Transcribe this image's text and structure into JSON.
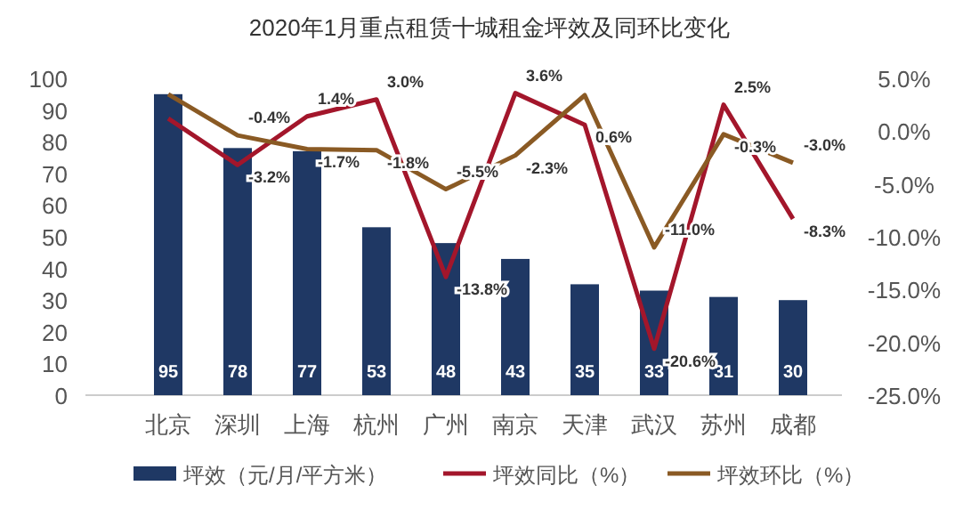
{
  "chart_data": {
    "type": "bar",
    "title": "2020年1月重点租赁十城租金坪效及同环比变化",
    "categories": [
      "北京",
      "深圳",
      "上海",
      "杭州",
      "广州",
      "南京",
      "天津",
      "武汉",
      "苏州",
      "成都"
    ],
    "series": [
      {
        "name": "坪效（元/月/平方米）",
        "color": "#1f3864",
        "values": [
          95,
          78,
          77,
          53,
          48,
          43,
          35,
          33,
          31,
          30
        ],
        "value_labels": [
          "95",
          "78",
          "77",
          "53",
          "48",
          "43",
          "35",
          "33",
          "31",
          "30"
        ]
      },
      {
        "name": "坪效同比（%）",
        "type": "line",
        "axis": "y2",
        "color": "#a3162b",
        "values": [
          1.2,
          -3.2,
          1.4,
          3.0,
          -13.8,
          3.6,
          0.6,
          -20.6,
          2.5,
          -8.3
        ],
        "value_labels": [
          null,
          "-3.2%",
          "1.4%",
          "3.0%",
          "-13.8%",
          "3.6%",
          "0.6%",
          "-20.6%",
          "2.5%",
          "-8.3%"
        ]
      },
      {
        "name": "坪效环比（%）",
        "type": "line",
        "axis": "y2",
        "color": "#8a5a24",
        "values": [
          3.5,
          -0.4,
          -1.7,
          -1.8,
          -5.5,
          -2.3,
          3.4,
          -11.0,
          -0.3,
          -3.0
        ],
        "value_labels": [
          null,
          "-0.4%",
          "-1.7%",
          "-1.8%",
          "-5.5%",
          "-2.3%",
          null,
          "-11.0%",
          "-0.3%",
          "-3.0%"
        ]
      }
    ],
    "ylim": [
      0,
      100
    ],
    "yticks": [
      0,
      10,
      20,
      30,
      40,
      50,
      60,
      70,
      80,
      90,
      100
    ],
    "y2lim": [
      -25,
      5
    ],
    "y2ticks": [
      {
        "value": 5,
        "label": "5.0%"
      },
      {
        "value": 0,
        "label": "0.0%"
      },
      {
        "value": -5,
        "label": "-5.0%"
      },
      {
        "value": -10,
        "label": "-10.0%"
      },
      {
        "value": -15,
        "label": "-15.0%"
      },
      {
        "value": -20,
        "label": "-20.0%"
      },
      {
        "value": -25,
        "label": "-25.0%"
      }
    ],
    "grid": false,
    "legend": "bottom",
    "marker": "none",
    "line_style": "solid"
  }
}
